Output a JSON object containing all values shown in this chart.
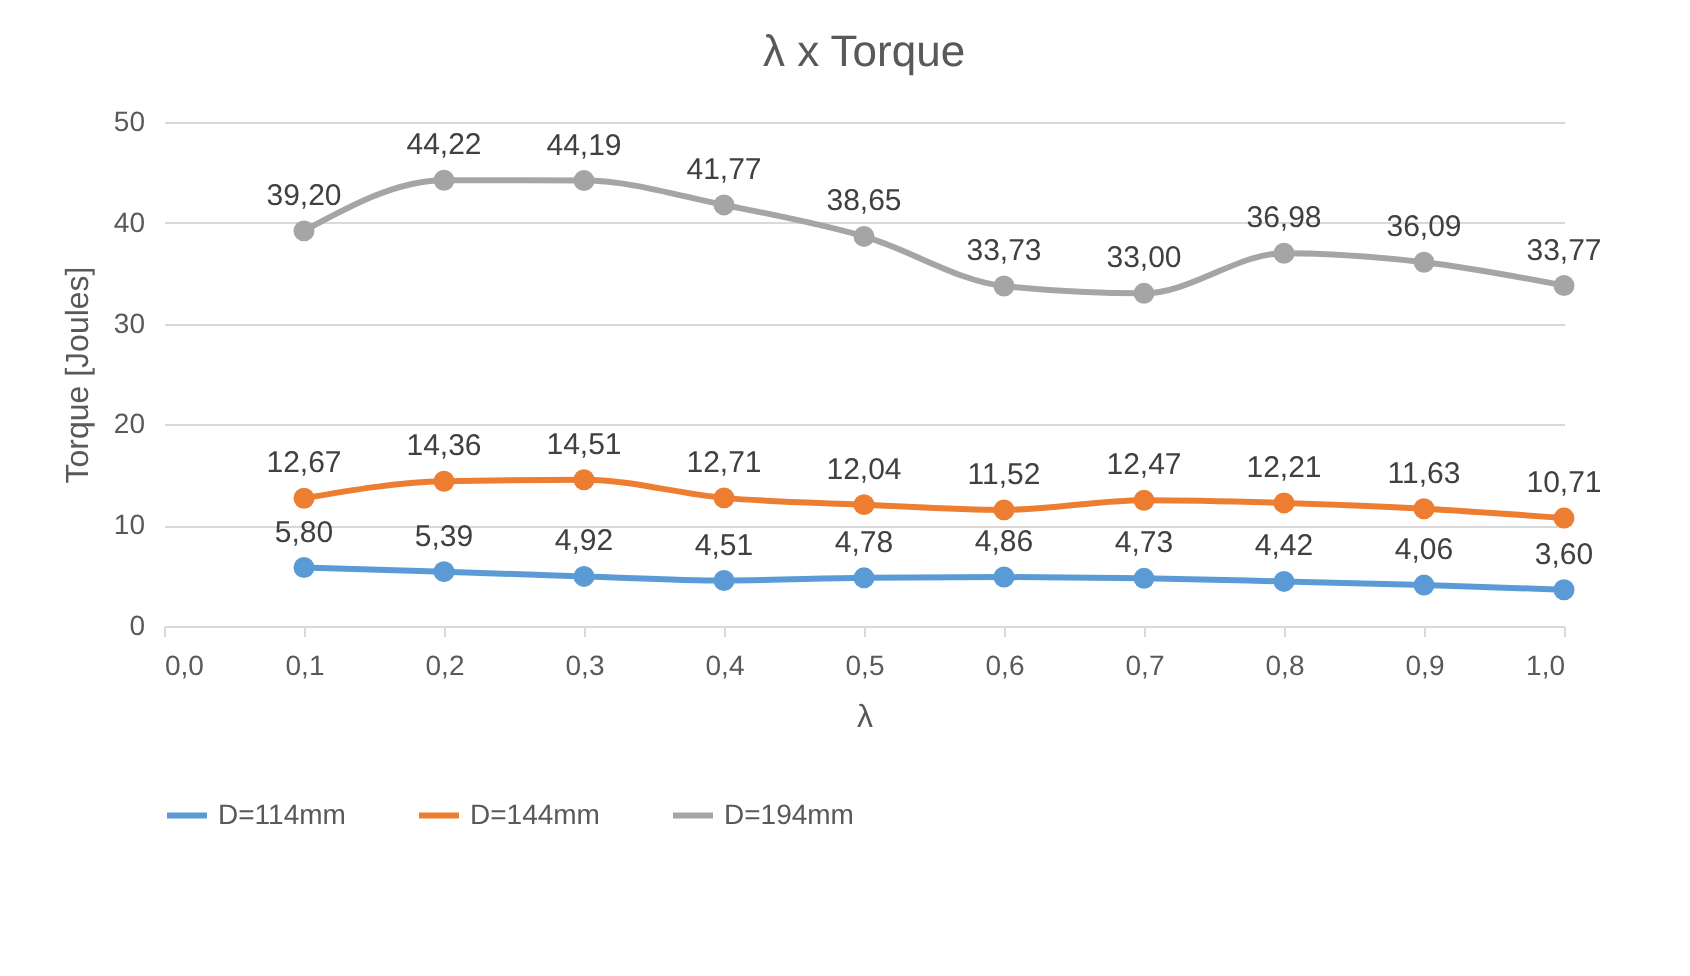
{
  "chart_data": {
    "type": "line",
    "title": "λ x Torque",
    "xlabel": "λ",
    "ylabel": "Torque [Joules]",
    "x": [
      0.1,
      0.2,
      0.3,
      0.4,
      0.5,
      0.6,
      0.7,
      0.8,
      0.9,
      1.0
    ],
    "xlim": [
      0,
      1
    ],
    "xticks": [
      {
        "value": 0,
        "label": "0,0"
      },
      {
        "value": 0.1,
        "label": "0,1"
      },
      {
        "value": 0.2,
        "label": "0,2"
      },
      {
        "value": 0.3,
        "label": "0,3"
      },
      {
        "value": 0.4,
        "label": "0,4"
      },
      {
        "value": 0.5,
        "label": "0,5"
      },
      {
        "value": 0.6,
        "label": "0,6"
      },
      {
        "value": 0.7,
        "label": "0,7"
      },
      {
        "value": 0.8,
        "label": "0,8"
      },
      {
        "value": 0.9,
        "label": "0,9"
      },
      {
        "value": 1,
        "label": "1,0"
      }
    ],
    "ylim": [
      0,
      50
    ],
    "yticks": [
      0,
      10,
      20,
      30,
      40,
      50
    ],
    "grid": "y",
    "legend": "bottom",
    "marker": "circle",
    "line_style": "solid",
    "series": [
      {
        "name": "D=114mm",
        "color": "#5b9bd5",
        "values": [
          5.8,
          5.39,
          4.92,
          4.51,
          4.78,
          4.86,
          4.73,
          4.42,
          4.06,
          3.6
        ],
        "value_labels": [
          "5,80",
          "5,39",
          "4,92",
          "4,51",
          "4,78",
          "4,86",
          "4,73",
          "4,42",
          "4,06",
          "3,60"
        ]
      },
      {
        "name": "D=144mm",
        "color": "#ed7d31",
        "values": [
          12.67,
          14.36,
          14.51,
          12.71,
          12.04,
          11.52,
          12.47,
          12.21,
          11.63,
          10.71
        ],
        "value_labels": [
          "12,67",
          "14,36",
          "14,51",
          "12,71",
          "12,04",
          "11,52",
          "12,47",
          "12,21",
          "11,63",
          "10,71"
        ]
      },
      {
        "name": "D=194mm",
        "color": "#a5a5a5",
        "values": [
          39.2,
          44.22,
          44.19,
          41.77,
          38.65,
          33.73,
          33.0,
          36.98,
          36.09,
          33.77
        ],
        "value_labels": [
          "39,20",
          "44,22",
          "44,19",
          "41,77",
          "38,65",
          "33,73",
          "33,00",
          "36,98",
          "36,09",
          "33,77"
        ]
      }
    ]
  }
}
